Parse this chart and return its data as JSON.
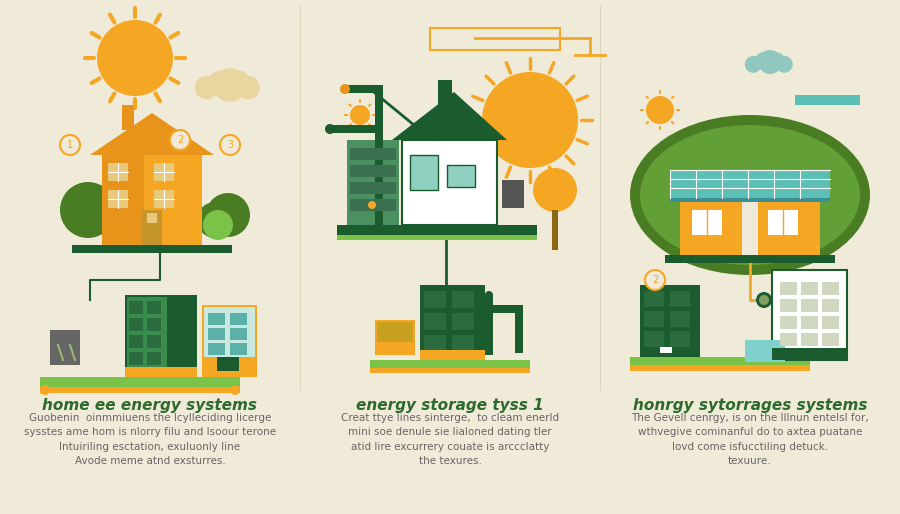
{
  "background_color": "#f0ead8",
  "panels": [
    {
      "title": "home ee energy systems",
      "body_lines": [
        "Guobenin  oinmmiuens the lcylleciding licerge",
        "sysstes ame hom is nlorry filu and Isoour terone",
        "Intuiriling esctation, exuluonly line",
        "Avode meme atnd exsturres."
      ]
    },
    {
      "title": "energy storage tyss 1",
      "body_lines": [
        "Creat ttye lines sinterge,  to cleam enerld",
        "mini soe denule sie lialoned dating tler",
        "atid lire excurrery couate is arccclatty",
        "the texures."
      ]
    },
    {
      "title": "honrgy sytorrages systems",
      "body_lines": [
        "The Gevell cenrgy, is on the lIlnun entelsl for,",
        "wthvegive cominanful do to axtea puatane",
        "lovd come isfucctiling detuck.",
        "texuure."
      ]
    }
  ],
  "title_color": "#2d6a2d",
  "title_fontsize": 11,
  "body_color": "#666666",
  "body_fontsize": 7.5,
  "accent_orange": "#F5A623",
  "accent_orange2": "#E8941A",
  "dark_green": "#1a5c2e",
  "mid_green": "#4A7C24",
  "light_green": "#7BC248",
  "pale_green": "#a8d060",
  "teal": "#5BBFB5",
  "teal_light": "#80d0cc",
  "cloud_beige": "#e8d5a0",
  "cloud_teal": "#90c8c0"
}
